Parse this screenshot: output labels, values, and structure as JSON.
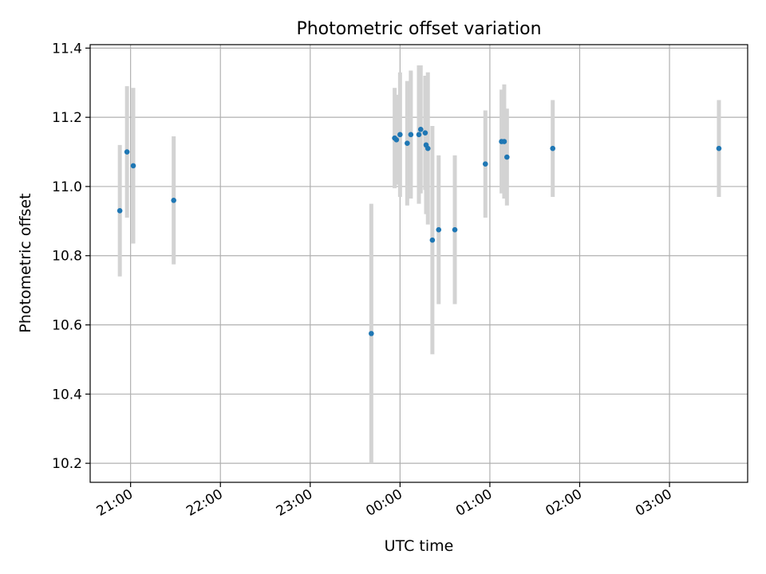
{
  "chart_data": {
    "type": "scatter",
    "title": "Photometric offset variation",
    "xlabel": "UTC time",
    "ylabel": "Photometric offset",
    "x_unit": "hours relative to 00:00 UTC",
    "xlim": [
      -3.45,
      3.87
    ],
    "ylim": [
      10.145,
      11.41
    ],
    "grid": true,
    "x_ticks": [
      {
        "value": -3,
        "label": "21:00"
      },
      {
        "value": -2,
        "label": "22:00"
      },
      {
        "value": -1,
        "label": "23:00"
      },
      {
        "value": 0,
        "label": "00:00"
      },
      {
        "value": 1,
        "label": "01:00"
      },
      {
        "value": 2,
        "label": "02:00"
      },
      {
        "value": 3,
        "label": "03:00"
      }
    ],
    "y_ticks": [
      {
        "value": 10.2,
        "label": "10.2"
      },
      {
        "value": 10.4,
        "label": "10.4"
      },
      {
        "value": 10.6,
        "label": "10.6"
      },
      {
        "value": 10.8,
        "label": "10.8"
      },
      {
        "value": 11.0,
        "label": "11.0"
      },
      {
        "value": 11.2,
        "label": "11.2"
      },
      {
        "value": 11.4,
        "label": "11.4"
      }
    ],
    "series": [
      {
        "name": "offset",
        "marker_color": "#1f77b4",
        "errorbar_color": "#d3d3d3",
        "points": [
          {
            "x": -3.12,
            "y": 10.93,
            "err": 0.19
          },
          {
            "x": -3.04,
            "y": 11.1,
            "err": 0.19
          },
          {
            "x": -2.97,
            "y": 11.06,
            "err": 0.225
          },
          {
            "x": -2.52,
            "y": 10.96,
            "err": 0.185
          },
          {
            "x": -0.32,
            "y": 10.575,
            "err": 0.375
          },
          {
            "x": -0.06,
            "y": 11.14,
            "err": 0.145
          },
          {
            "x": -0.04,
            "y": 11.135,
            "err": 0.13
          },
          {
            "x": 0.0,
            "y": 11.15,
            "err": 0.18
          },
          {
            "x": 0.08,
            "y": 11.125,
            "err": 0.18
          },
          {
            "x": 0.12,
            "y": 11.15,
            "err": 0.185
          },
          {
            "x": 0.21,
            "y": 11.15,
            "err": 0.2
          },
          {
            "x": 0.23,
            "y": 11.165,
            "err": 0.185
          },
          {
            "x": 0.28,
            "y": 11.155,
            "err": 0.165
          },
          {
            "x": 0.29,
            "y": 11.12,
            "err": 0.2
          },
          {
            "x": 0.31,
            "y": 11.11,
            "err": 0.22
          },
          {
            "x": 0.36,
            "y": 10.845,
            "err": 0.33
          },
          {
            "x": 0.43,
            "y": 10.875,
            "err": 0.215
          },
          {
            "x": 0.61,
            "y": 10.875,
            "err": 0.215
          },
          {
            "x": 0.95,
            "y": 11.065,
            "err": 0.155
          },
          {
            "x": 1.13,
            "y": 11.13,
            "err": 0.15
          },
          {
            "x": 1.16,
            "y": 11.13,
            "err": 0.165
          },
          {
            "x": 1.19,
            "y": 11.085,
            "err": 0.14
          },
          {
            "x": 1.7,
            "y": 11.11,
            "err": 0.14
          },
          {
            "x": 3.55,
            "y": 11.11,
            "err": 0.14
          }
        ]
      }
    ]
  }
}
